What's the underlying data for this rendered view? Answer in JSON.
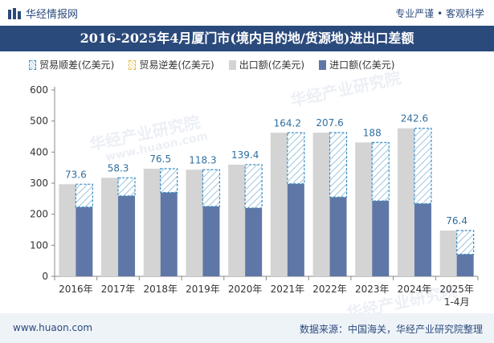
{
  "header": {
    "site_name": "华经情报网",
    "tags": "专业严谨 • 客观科学"
  },
  "title": "2016-2025年4月厦门市(境内目的地/货源地)进出口差额",
  "legend": {
    "surplus": "贸易顺差(亿美元)",
    "deficit": "贸易逆差(亿美元)",
    "export": "出口额(亿美元)",
    "import": "进口额(亿美元)"
  },
  "watermarks": [
    "华经产业研究院",
    "www.huaon.com"
  ],
  "footer": {
    "url": "www.huaon.com",
    "source": "数据来源：中国海关，华经产业研究院整理"
  },
  "colors": {
    "export": "#d4d4d4",
    "import": "#5f77a6",
    "surplus": "#3d8ec4",
    "label": "#2f6f9f",
    "title_bg": "#2b4a7c"
  },
  "chart_data": {
    "type": "bar",
    "categories": [
      "2016年",
      "2017年",
      "2018年",
      "2019年",
      "2020年",
      "2021年",
      "2022年",
      "2023年",
      "2024年",
      "2025年\n1-4月"
    ],
    "series": [
      {
        "name": "出口额(亿美元)",
        "values": [
          296.6,
          317.3,
          346.5,
          343.3,
          359.4,
          462.2,
          462.6,
          431.0,
          476.6,
          147.4
        ]
      },
      {
        "name": "进口额(亿美元)",
        "values": [
          223.0,
          259.0,
          270.0,
          225.0,
          220.0,
          298.0,
          255.0,
          243.0,
          234.0,
          71.0
        ]
      },
      {
        "name": "贸易顺差(亿美元)",
        "values": [
          73.6,
          58.3,
          76.5,
          118.3,
          139.4,
          164.2,
          207.6,
          188,
          242.6,
          76.4
        ]
      }
    ],
    "ylim": [
      0,
      600
    ],
    "yticks": [
      0,
      100,
      200,
      300,
      400,
      500,
      600
    ],
    "legend_position": "top",
    "grid": false
  }
}
